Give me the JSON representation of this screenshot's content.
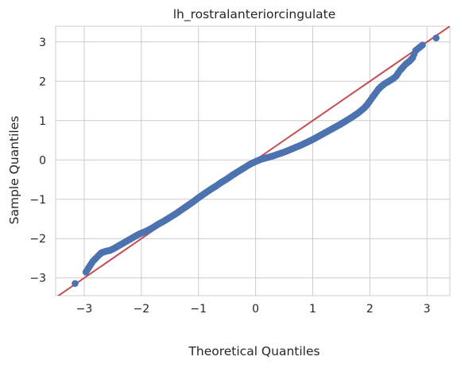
{
  "chart_data": {
    "type": "scatter",
    "title": "lh_rostralanteriorcingulate",
    "xlabel": "Theoretical Quantiles",
    "ylabel": "Sample Quantiles",
    "xlim": [
      -3.5,
      3.4
    ],
    "ylim": [
      -3.45,
      3.4
    ],
    "xticks": [
      -3,
      -2,
      -1,
      0,
      1,
      2,
      3
    ],
    "yticks": [
      -3,
      -2,
      -1,
      0,
      1,
      2,
      3
    ],
    "xtick_labels": [
      "−3",
      "−2",
      "−1",
      "0",
      "1",
      "2",
      "3"
    ],
    "ytick_labels": [
      "−3",
      "−2",
      "−1",
      "0",
      "1",
      "2",
      "3"
    ],
    "grid": true,
    "reference_line": {
      "slope": 1,
      "intercept": 0,
      "color": "#c44e52"
    },
    "marker_color": "#4c72b0",
    "background": "#ffffff",
    "grid_color": "#cccccc",
    "points": [
      [
        -3.16,
        -3.14
      ],
      [
        -2.97,
        -2.85
      ],
      [
        -2.85,
        -2.58
      ],
      [
        -2.77,
        -2.46
      ],
      [
        -2.7,
        -2.36
      ],
      [
        -2.62,
        -2.32
      ],
      [
        -2.55,
        -2.3
      ],
      [
        -2.48,
        -2.25
      ],
      [
        -2.42,
        -2.2
      ],
      [
        -2.36,
        -2.15
      ],
      [
        -2.3,
        -2.1
      ],
      [
        -2.24,
        -2.05
      ],
      [
        -2.18,
        -2.0
      ],
      [
        -2.12,
        -1.95
      ],
      [
        -2.06,
        -1.9
      ],
      [
        -2.0,
        -1.86
      ],
      [
        -1.9,
        -1.8
      ],
      [
        -1.8,
        -1.72
      ],
      [
        -1.7,
        -1.63
      ],
      [
        -1.6,
        -1.55
      ],
      [
        -1.5,
        -1.46
      ],
      [
        -1.4,
        -1.37
      ],
      [
        -1.3,
        -1.27
      ],
      [
        -1.2,
        -1.17
      ],
      [
        -1.1,
        -1.07
      ],
      [
        -1.0,
        -0.96
      ],
      [
        -0.9,
        -0.86
      ],
      [
        -0.8,
        -0.76
      ],
      [
        -0.7,
        -0.67
      ],
      [
        -0.6,
        -0.57
      ],
      [
        -0.5,
        -0.48
      ],
      [
        -0.4,
        -0.38
      ],
      [
        -0.3,
        -0.29
      ],
      [
        -0.2,
        -0.2
      ],
      [
        -0.1,
        -0.11
      ],
      [
        0.0,
        -0.04
      ],
      [
        0.1,
        0.02
      ],
      [
        0.2,
        0.06
      ],
      [
        0.3,
        0.1
      ],
      [
        0.4,
        0.15
      ],
      [
        0.5,
        0.2
      ],
      [
        0.6,
        0.26
      ],
      [
        0.7,
        0.32
      ],
      [
        0.8,
        0.38
      ],
      [
        0.9,
        0.45
      ],
      [
        1.0,
        0.52
      ],
      [
        1.1,
        0.6
      ],
      [
        1.2,
        0.68
      ],
      [
        1.3,
        0.76
      ],
      [
        1.4,
        0.84
      ],
      [
        1.5,
        0.92
      ],
      [
        1.6,
        1.01
      ],
      [
        1.7,
        1.1
      ],
      [
        1.8,
        1.2
      ],
      [
        1.9,
        1.32
      ],
      [
        1.95,
        1.4
      ],
      [
        2.0,
        1.5
      ],
      [
        2.05,
        1.6
      ],
      [
        2.1,
        1.7
      ],
      [
        2.15,
        1.8
      ],
      [
        2.2,
        1.87
      ],
      [
        2.26,
        1.94
      ],
      [
        2.33,
        2.0
      ],
      [
        2.4,
        2.06
      ],
      [
        2.46,
        2.13
      ],
      [
        2.5,
        2.22
      ],
      [
        2.53,
        2.28
      ],
      [
        2.58,
        2.36
      ],
      [
        2.63,
        2.44
      ],
      [
        2.7,
        2.52
      ],
      [
        2.75,
        2.6
      ],
      [
        2.8,
        2.78
      ],
      [
        2.92,
        2.92
      ],
      [
        3.16,
        3.1
      ]
    ]
  }
}
